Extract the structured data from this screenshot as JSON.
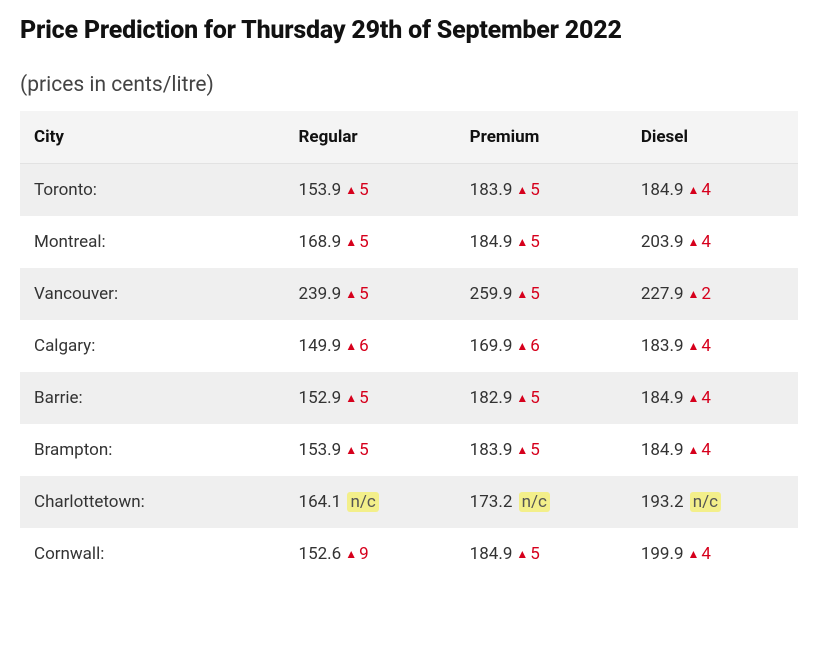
{
  "title": "Price Prediction for Thursday 29th of September 2022",
  "subtitle": "(prices in cents/litre)",
  "table": {
    "columns": [
      "City",
      "Regular",
      "Premium",
      "Diesel"
    ],
    "rows": [
      {
        "city": "Toronto:",
        "regular": {
          "price": "153.9",
          "dir": "up",
          "delta": "5"
        },
        "premium": {
          "price": "183.9",
          "dir": "up",
          "delta": "5"
        },
        "diesel": {
          "price": "184.9",
          "dir": "up",
          "delta": "4"
        }
      },
      {
        "city": "Montreal:",
        "regular": {
          "price": "168.9",
          "dir": "up",
          "delta": "5"
        },
        "premium": {
          "price": "184.9",
          "dir": "up",
          "delta": "5"
        },
        "diesel": {
          "price": "203.9",
          "dir": "up",
          "delta": "4"
        }
      },
      {
        "city": "Vancouver:",
        "regular": {
          "price": "239.9",
          "dir": "up",
          "delta": "5"
        },
        "premium": {
          "price": "259.9",
          "dir": "up",
          "delta": "5"
        },
        "diesel": {
          "price": "227.9",
          "dir": "up",
          "delta": "2"
        }
      },
      {
        "city": "Calgary:",
        "regular": {
          "price": "149.9",
          "dir": "up",
          "delta": "6"
        },
        "premium": {
          "price": "169.9",
          "dir": "up",
          "delta": "6"
        },
        "diesel": {
          "price": "183.9",
          "dir": "up",
          "delta": "4"
        }
      },
      {
        "city": "Barrie:",
        "regular": {
          "price": "152.9",
          "dir": "up",
          "delta": "5"
        },
        "premium": {
          "price": "182.9",
          "dir": "up",
          "delta": "5"
        },
        "diesel": {
          "price": "184.9",
          "dir": "up",
          "delta": "4"
        }
      },
      {
        "city": "Brampton:",
        "regular": {
          "price": "153.9",
          "dir": "up",
          "delta": "5"
        },
        "premium": {
          "price": "183.9",
          "dir": "up",
          "delta": "5"
        },
        "diesel": {
          "price": "184.9",
          "dir": "up",
          "delta": "4"
        }
      },
      {
        "city": "Charlottetown:",
        "regular": {
          "price": "164.1",
          "dir": "nc",
          "delta": "n/c"
        },
        "premium": {
          "price": "173.2",
          "dir": "nc",
          "delta": "n/c"
        },
        "diesel": {
          "price": "193.2",
          "dir": "nc",
          "delta": "n/c"
        }
      },
      {
        "city": "Cornwall:",
        "regular": {
          "price": "152.6",
          "dir": "up",
          "delta": "9"
        },
        "premium": {
          "price": "184.9",
          "dir": "up",
          "delta": "5"
        },
        "diesel": {
          "price": "199.9",
          "dir": "up",
          "delta": "4"
        }
      }
    ]
  },
  "styling": {
    "arrow_up_glyph": "▲",
    "arrow_color": "#d6001c",
    "nc_bg": "#f3ef8a",
    "header_bg": "#f4f4f4",
    "row_odd_bg": "#efefef",
    "row_even_bg": "#ffffff",
    "title_color": "#111111",
    "text_color": "#333333"
  }
}
